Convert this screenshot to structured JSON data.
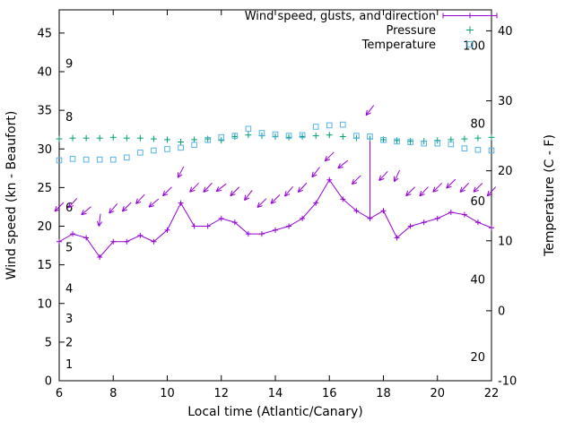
{
  "chart_data": {
    "type": "line",
    "title": "",
    "xlabel": "Local time (Atlantic/Canary)",
    "ylabel_left": "Wind speed (kn - Beaufort)",
    "ylabel_right": "Temperature (C - F)",
    "xlim": [
      6,
      22
    ],
    "ylim_left": [
      0,
      48
    ],
    "ylim_right": [
      -10,
      43
    ],
    "x_ticks": [
      6,
      8,
      10,
      12,
      14,
      16,
      18,
      20,
      22
    ],
    "y_ticks_left": [
      0,
      5,
      10,
      15,
      20,
      25,
      30,
      35,
      40,
      45
    ],
    "y_ticks_right": [
      -10,
      0,
      10,
      20,
      30,
      40
    ],
    "grid": false,
    "legend_position": "top-right-inside",
    "colors": {
      "wind": "#9400d3",
      "pressure": "#009e73",
      "temperature": "#56b4e9",
      "axis": "#000000"
    },
    "legend": [
      {
        "key": "wind",
        "label": "Wind speed, gusts, and direction"
      },
      {
        "key": "pressure",
        "label": "Pressure"
      },
      {
        "key": "temperature",
        "label": "Temperature"
      }
    ],
    "beaufort_scale_labels": [
      {
        "label": "1",
        "kn": 2.1
      },
      {
        "label": "2",
        "kn": 4.9
      },
      {
        "label": "3",
        "kn": 8.0
      },
      {
        "label": "4",
        "kn": 11.9
      },
      {
        "label": "5",
        "kn": 17.2
      },
      {
        "label": "6",
        "kn": 22.4
      },
      {
        "label": "8",
        "kn": 34.1
      },
      {
        "label": "9",
        "kn": 41.0
      }
    ],
    "fahrenheit_scale_labels": [
      {
        "label": "20",
        "c": -6.7
      },
      {
        "label": "40",
        "c": 4.4
      },
      {
        "label": "60",
        "c": 15.6
      },
      {
        "label": "80",
        "c": 26.7
      },
      {
        "label": "100",
        "c": 37.8
      }
    ],
    "x": [
      6,
      6.5,
      7,
      7.5,
      8,
      8.5,
      9,
      9.5,
      10,
      10.5,
      11,
      11.5,
      12,
      12.5,
      13,
      13.5,
      14,
      14.5,
      15,
      15.5,
      16,
      16.5,
      17,
      17.5,
      18,
      18.5,
      19,
      19.5,
      20,
      20.5,
      21,
      21.5,
      22
    ],
    "series": [
      {
        "key": "wind",
        "name": "Wind speed, gusts, and direction",
        "axis": "left",
        "values": [
          18,
          19,
          18.5,
          16,
          18,
          18,
          18.8,
          18,
          19.5,
          23,
          20,
          20,
          21,
          20.5,
          19,
          19,
          19.5,
          20,
          21,
          23,
          26,
          23.5,
          22,
          21,
          22,
          18.5,
          20,
          20.5,
          21,
          21.8,
          21.5,
          20.5,
          19.8
        ]
      },
      {
        "key": "pressure",
        "name": "Pressure",
        "axis": "left",
        "values": [
          31.3,
          31.4,
          31.4,
          31.4,
          31.5,
          31.4,
          31.4,
          31.3,
          31.2,
          30.9,
          31.2,
          31.3,
          31.1,
          31.6,
          31.8,
          31.7,
          31.6,
          31.5,
          31.6,
          31.7,
          31.8,
          31.6,
          31.4,
          31.3,
          31.2,
          31.1,
          31.0,
          31.0,
          31.1,
          31.2,
          31.3,
          31.4,
          31.5
        ]
      },
      {
        "key": "temperature",
        "name": "Temperature",
        "axis": "right",
        "values_c": [
          21.5,
          21.7,
          21.6,
          21.6,
          21.6,
          21.9,
          22.6,
          22.9,
          23.1,
          23.3,
          23.7,
          24.4,
          24.8,
          25.0,
          26.0,
          25.4,
          25.2,
          25.0,
          25.1,
          26.3,
          26.5,
          26.6,
          25.0,
          24.9,
          24.4,
          24.2,
          24.1,
          23.9,
          23.9,
          23.8,
          23.2,
          23.0,
          22.9
        ]
      }
    ],
    "wind_arrows": {
      "anchor_kn": [
        22.5,
        23,
        22,
        20.8,
        22.3,
        22.5,
        23.5,
        23,
        24.5,
        27,
        25,
        25,
        25,
        24.5,
        24,
        23,
        23.5,
        24.5,
        25,
        27,
        29,
        28,
        26,
        35,
        26.5,
        26.5,
        24.5,
        24.5,
        25,
        25.5,
        25,
        25,
        24.5
      ],
      "angle_deg": [
        135,
        132,
        140,
        97,
        130,
        135,
        133,
        140,
        135,
        118,
        135,
        133,
        142,
        135,
        128,
        135,
        135,
        130,
        133,
        128,
        135,
        142,
        135,
        128,
        133,
        115,
        135,
        133,
        135,
        135,
        133,
        135,
        133
      ]
    },
    "gust_spike": {
      "x": 17.5,
      "from_kn": 21,
      "to_kn": 31
    }
  }
}
